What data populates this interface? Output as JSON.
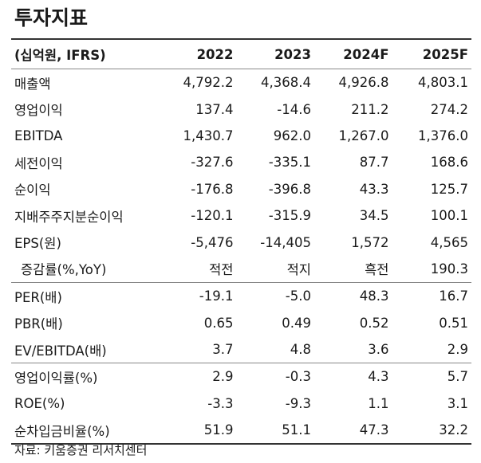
{
  "title": "투자지표",
  "header": {
    "label": "(십억원, IFRS)",
    "years": [
      "2022",
      "2023",
      "2024F",
      "2025F"
    ]
  },
  "groups": [
    [
      {
        "label": "매출액",
        "values": [
          "4,792.2",
          "4,368.4",
          "4,926.8",
          "4,803.1"
        ]
      },
      {
        "label": "영업이익",
        "values": [
          "137.4",
          "-14.6",
          "211.2",
          "274.2"
        ]
      },
      {
        "label": "EBITDA",
        "values": [
          "1,430.7",
          "962.0",
          "1,267.0",
          "1,376.0"
        ]
      },
      {
        "label": "세전이익",
        "values": [
          "-327.6",
          "-335.1",
          "87.7",
          "168.6"
        ]
      },
      {
        "label": "순이익",
        "values": [
          "-176.8",
          "-396.8",
          "43.3",
          "125.7"
        ]
      },
      {
        "label": "지배주주지분순이익",
        "values": [
          "-120.1",
          "-315.9",
          "34.5",
          "100.1"
        ]
      },
      {
        "label": "EPS(원)",
        "values": [
          "-5,476",
          "-14,405",
          "1,572",
          "4,565"
        ]
      },
      {
        "label": "증감률(%,YoY)",
        "values": [
          "적전",
          "적지",
          "흑전",
          "190.3"
        ],
        "sub": true
      }
    ],
    [
      {
        "label": "PER(배)",
        "values": [
          "-19.1",
          "-5.0",
          "48.3",
          "16.7"
        ]
      },
      {
        "label": "PBR(배)",
        "values": [
          "0.65",
          "0.49",
          "0.52",
          "0.51"
        ]
      },
      {
        "label": "EV/EBITDA(배)",
        "values": [
          "3.7",
          "4.8",
          "3.6",
          "2.9"
        ]
      }
    ],
    [
      {
        "label": "영업이익률(%)",
        "values": [
          "2.9",
          "-0.3",
          "4.3",
          "5.7"
        ]
      },
      {
        "label": "ROE(%)",
        "values": [
          "-3.3",
          "-9.3",
          "1.1",
          "3.1"
        ]
      },
      {
        "label": "순차입금비율(%)",
        "values": [
          "51.9",
          "51.1",
          "47.3",
          "32.2"
        ]
      }
    ]
  ],
  "source": "자료: 키움증권 리서치센터"
}
